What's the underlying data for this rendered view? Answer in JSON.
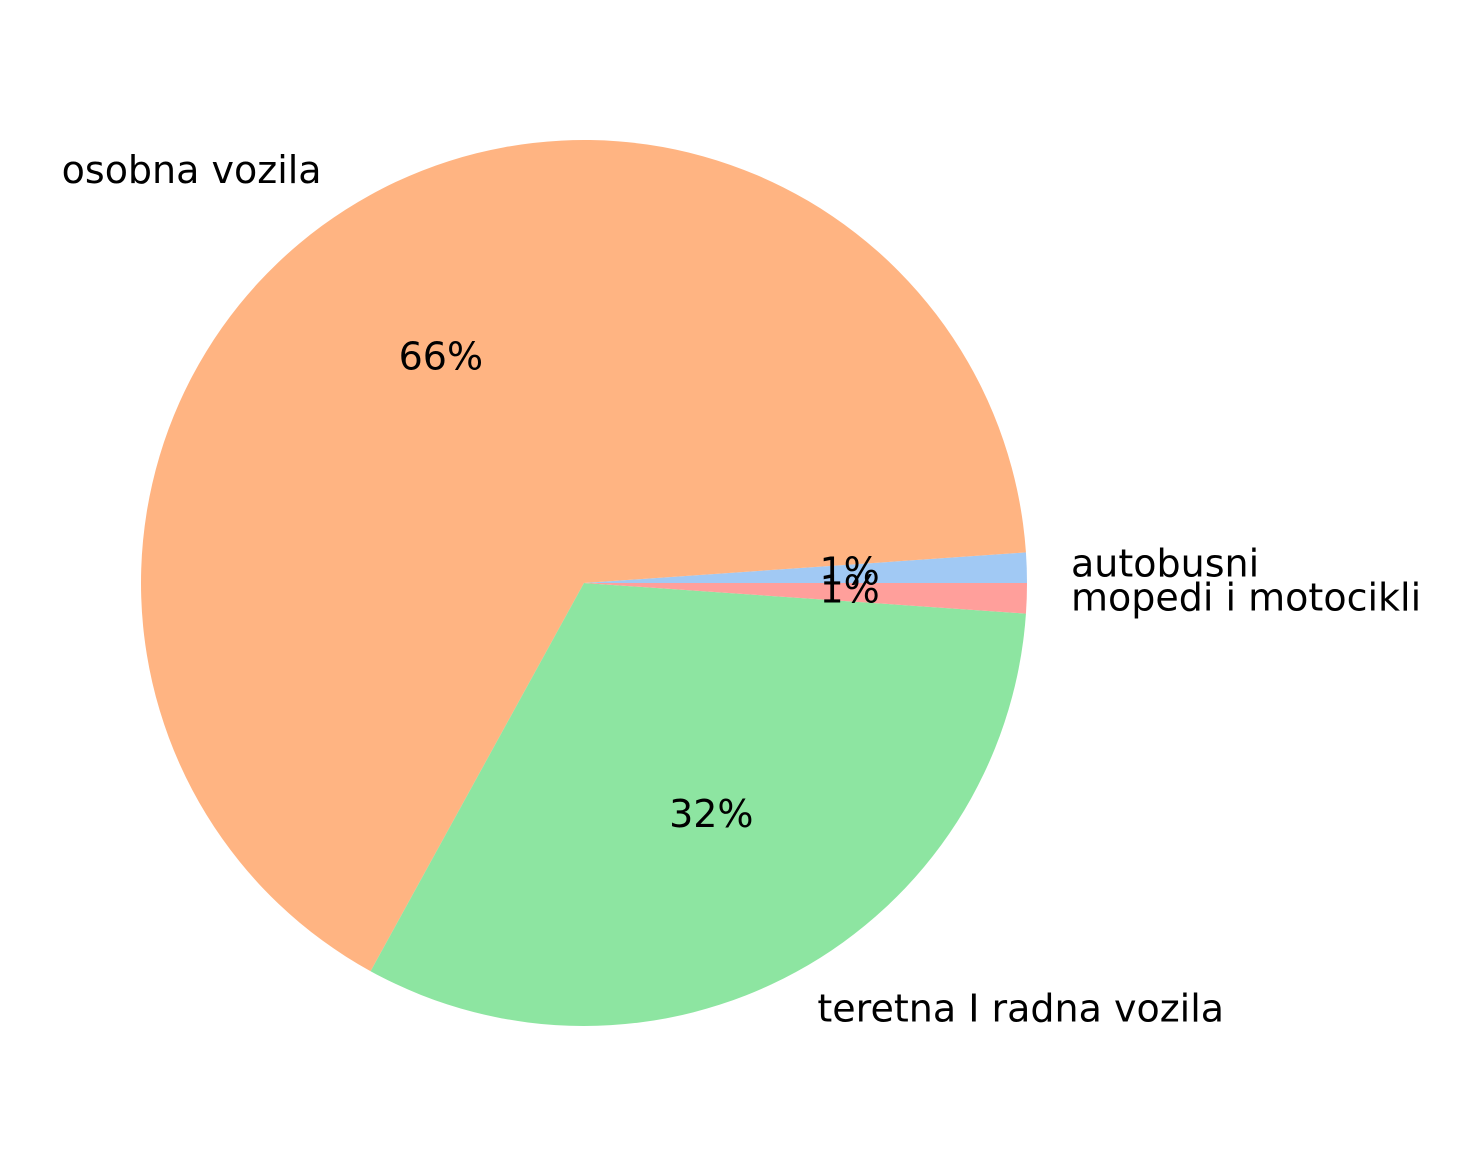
{
  "chart_data": {
    "type": "pie",
    "title": "",
    "slices": [
      {
        "label": "autobusni",
        "value": 1.1,
        "pct_label": "1%",
        "color": "#a1c9f4"
      },
      {
        "label": "osobna vozila",
        "value": 65.9,
        "pct_label": "66%",
        "color": "#ffb482"
      },
      {
        "label": "teretna I radna vozila",
        "value": 31.9,
        "pct_label": "32%",
        "color": "#8de5a1"
      },
      {
        "label": "mopedi i motocikli",
        "value": 1.1,
        "pct_label": "1%",
        "color": "#ff9f9b"
      }
    ],
    "start_angle_deg": 0,
    "direction": "counterclockwise",
    "legend": "none"
  }
}
